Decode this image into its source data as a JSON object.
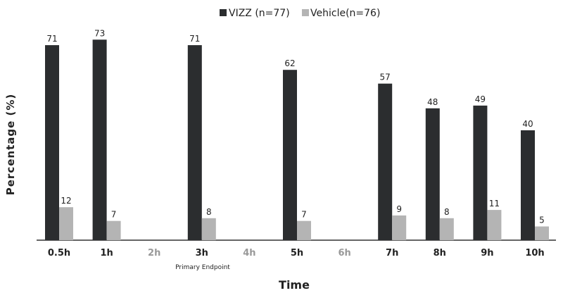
{
  "chart_data": {
    "type": "bar",
    "title": "",
    "xlabel": "Time",
    "ylabel": "Percentage (%)",
    "ylim": [
      0,
      75
    ],
    "grid": false,
    "legend_position": "top-center",
    "categories": [
      "0.5h",
      "1h",
      "2h",
      "3h",
      "4h",
      "5h",
      "6h",
      "7h",
      "8h",
      "9h",
      "10h"
    ],
    "category_note": {
      "category": "3h",
      "text": "Primary Endpoint"
    },
    "series": [
      {
        "name": "VIZZ (n=77)",
        "color": "#2b2d2f",
        "values": [
          71,
          73,
          null,
          71,
          null,
          62,
          null,
          57,
          48,
          49,
          40
        ]
      },
      {
        "name": "Vehicle(n=76)",
        "color": "#b4b4b4",
        "values": [
          12,
          7,
          null,
          8,
          null,
          7,
          null,
          9,
          8,
          11,
          5
        ]
      }
    ],
    "colors": {
      "active_tick": "#222222",
      "inactive_tick": "#999999"
    }
  }
}
